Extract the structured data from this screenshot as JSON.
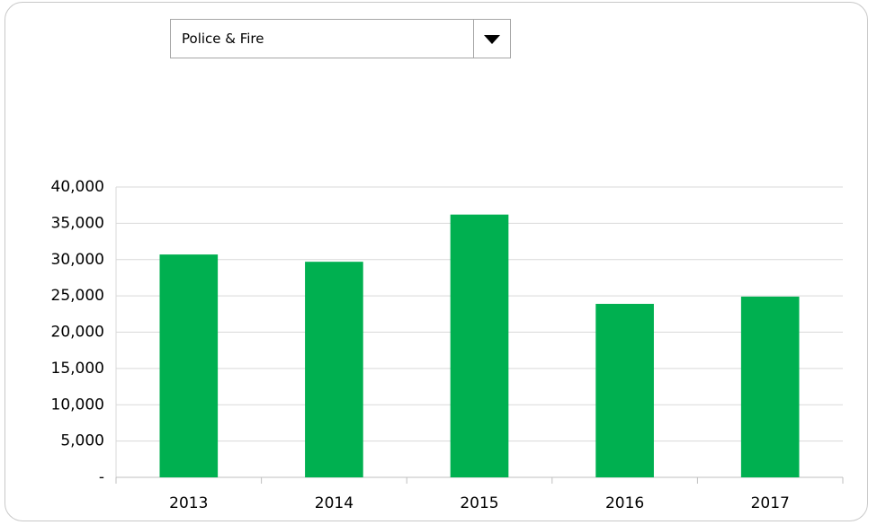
{
  "dropdown": {
    "selected": "Police & Fire"
  },
  "chart_data": {
    "type": "bar",
    "categories": [
      "2013",
      "2014",
      "2015",
      "2016",
      "2017"
    ],
    "values": [
      30700,
      29700,
      36200,
      23900,
      24900
    ],
    "color": "#00b050",
    "ylim": [
      0,
      40000
    ],
    "yticks": [
      {
        "value": 0,
        "label": "-"
      },
      {
        "value": 5000,
        "label": "5,000"
      },
      {
        "value": 10000,
        "label": "10,000"
      },
      {
        "value": 15000,
        "label": "15,000"
      },
      {
        "value": 20000,
        "label": "20,000"
      },
      {
        "value": 25000,
        "label": "25,000"
      },
      {
        "value": 30000,
        "label": "30,000"
      },
      {
        "value": 35000,
        "label": "35,000"
      },
      {
        "value": 40000,
        "label": "40,000"
      }
    ],
    "grid": true
  }
}
